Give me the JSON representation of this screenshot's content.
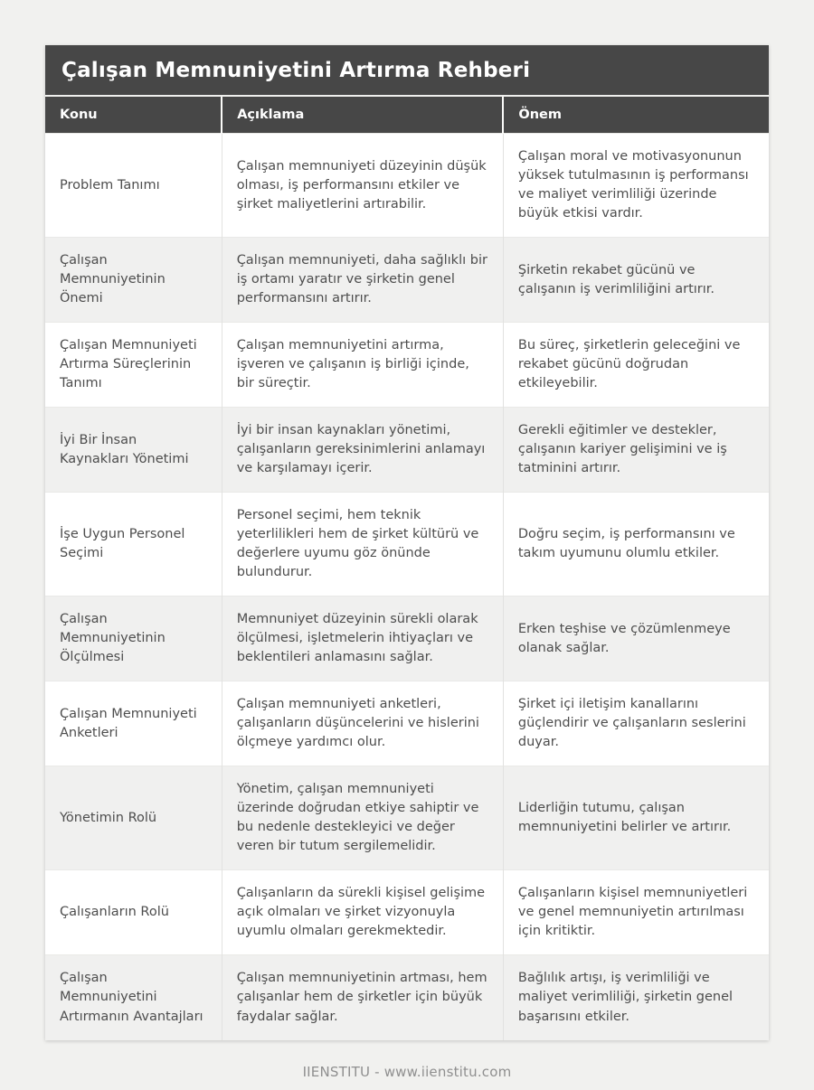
{
  "page": {
    "title": "Çalışan Memnuniyetini Artırma Rehberi",
    "footer": "IIENSTITU - www.iienstitu.com"
  },
  "colors": {
    "header_bg": "#474747",
    "header_text": "#ffffff",
    "page_bg": "#f1f1ef",
    "row_alt_bg": "#f0f0ef",
    "body_text": "#4d4d4d",
    "footer_text": "#8f8f8f"
  },
  "table": {
    "columns": [
      "Konu",
      "Açıklama",
      "Önem"
    ],
    "rows": [
      {
        "konu": "Problem Tanımı",
        "aciklama": "Çalışan memnuniyeti düzeyinin düşük olması, iş performansını etkiler ve şirket maliyetlerini artırabilir.",
        "onem": "Çalışan moral ve motivasyonunun yüksek tutulmasının iş performansı ve maliyet verimliliği üzerinde büyük etkisi vardır."
      },
      {
        "konu": "Çalışan Memnuniyetinin Önemi",
        "aciklama": "Çalışan memnuniyeti, daha sağlıklı bir iş ortamı yaratır ve şirketin genel performansını artırır.",
        "onem": "Şirketin rekabet gücünü ve çalışanın iş verimliliğini artırır."
      },
      {
        "konu": "Çalışan Memnuniyeti Artırma Süreçlerinin Tanımı",
        "aciklama": "Çalışan memnuniyetini artırma, işveren ve çalışanın iş birliği içinde, bir süreçtir.",
        "onem": "Bu süreç, şirketlerin geleceğini ve rekabet gücünü doğrudan etkileyebilir."
      },
      {
        "konu": "İyi Bir İnsan Kaynakları Yönetimi",
        "aciklama": "İyi bir insan kaynakları yönetimi, çalışanların gereksinimlerini anlamayı ve karşılamayı içerir.",
        "onem": "Gerekli eğitimler ve destekler, çalışanın kariyer gelişimini ve iş tatminini artırır."
      },
      {
        "konu": "İşe Uygun Personel Seçimi",
        "aciklama": "Personel seçimi, hem teknik yeterlilikleri hem de şirket kültürü ve değerlere uyumu göz önünde bulundurur.",
        "onem": "Doğru seçim, iş performansını ve takım uyumunu olumlu etkiler."
      },
      {
        "konu": "Çalışan Memnuniyetinin Ölçülmesi",
        "aciklama": "Memnuniyet düzeyinin sürekli olarak ölçülmesi, işletmelerin ihtiyaçları ve beklentileri anlamasını sağlar.",
        "onem": "Erken teşhise ve çözümlenmeye olanak sağlar."
      },
      {
        "konu": "Çalışan Memnuniyeti Anketleri",
        "aciklama": "Çalışan memnuniyeti anketleri, çalışanların düşüncelerini ve hislerini ölçmeye yardımcı olur.",
        "onem": "Şirket içi iletişim kanallarını güçlendirir ve çalışanların seslerini duyar."
      },
      {
        "konu": "Yönetimin Rolü",
        "aciklama": "Yönetim, çalışan memnuniyeti üzerinde doğrudan etkiye sahiptir ve bu nedenle destekleyici ve değer veren bir tutum sergilemelidir.",
        "onem": "Liderliğin tutumu, çalışan memnuniyetini belirler ve artırır."
      },
      {
        "konu": "Çalışanların Rolü",
        "aciklama": "Çalışanların da sürekli kişisel gelişime açık olmaları ve şirket vizyonuyla uyumlu olmaları gerekmektedir.",
        "onem": "Çalışanların kişisel memnuniyetleri ve genel memnuniyetin artırılması için kritiktir."
      },
      {
        "konu": "Çalışan Memnuniyetini Artırmanın Avantajları",
        "aciklama": "Çalışan memnuniyetinin artması, hem çalışanlar hem de şirketler için büyük faydalar sağlar.",
        "onem": "Bağlılık artışı, iş verimliliği ve maliyet verimliliği, şirketin genel başarısını etkiler."
      }
    ]
  }
}
